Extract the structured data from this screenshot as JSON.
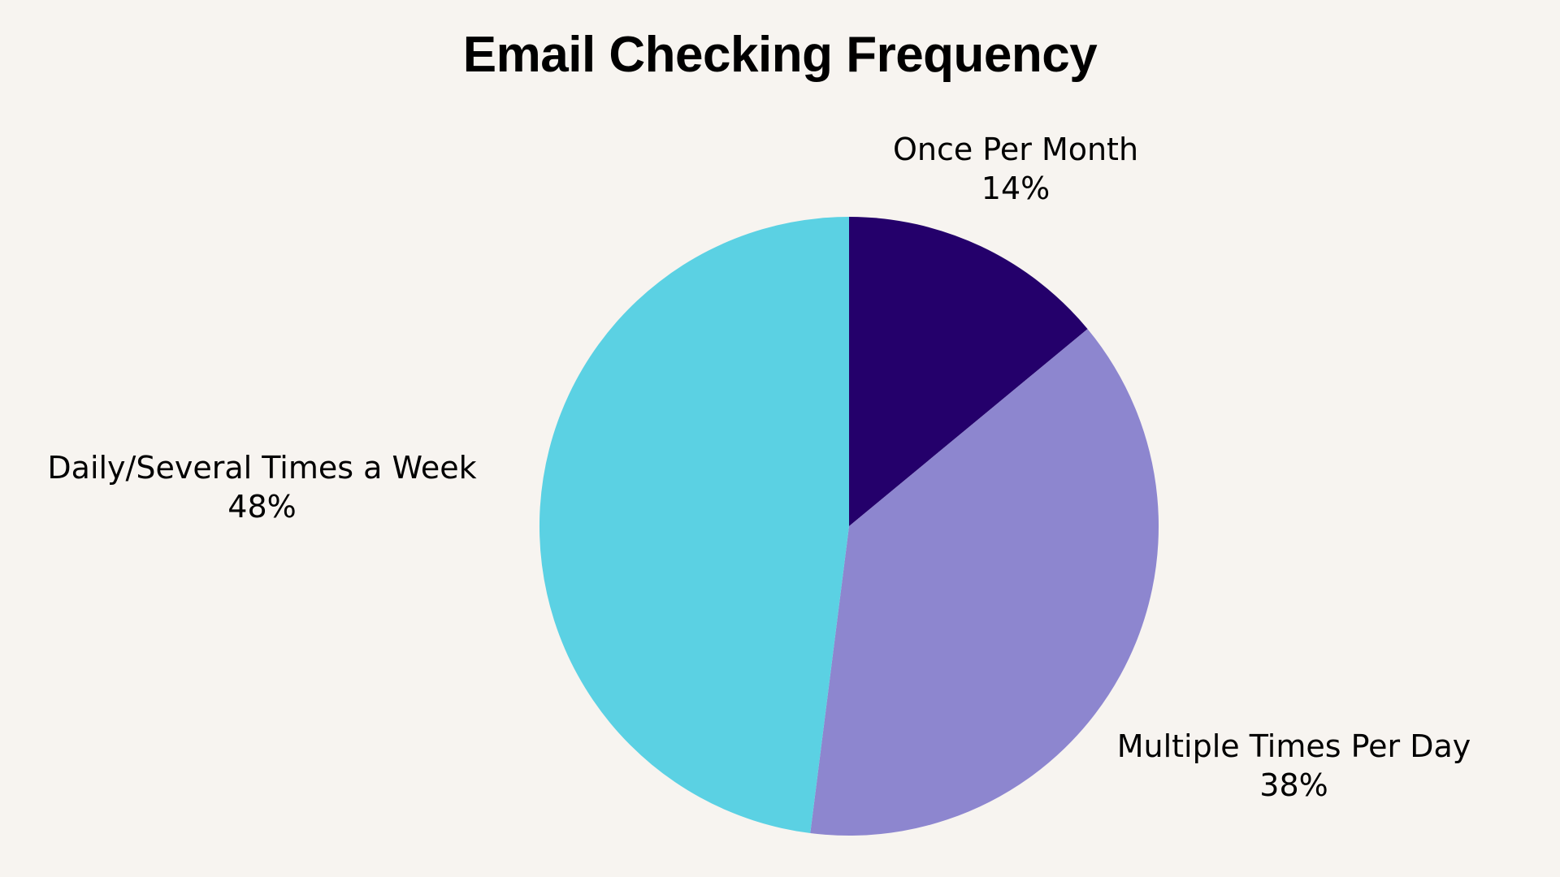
{
  "chart_data": {
    "type": "pie",
    "title": "Email Checking Frequency",
    "categories": [
      "Once Per Month",
      "Multiple Times Per Day",
      "Daily/Several Times a Week"
    ],
    "values": [
      14,
      38,
      48
    ],
    "labels": [
      "14%",
      "38%",
      "48%"
    ],
    "colors": [
      "#24006b",
      "#8d86cf",
      "#5bd1e3"
    ],
    "start_angle": "12 o'clock, clockwise",
    "legend": "none (data labels outside slices)"
  },
  "title": "Email Checking Frequency",
  "slices": [
    {
      "name": "Once Per Month",
      "pct": "14%",
      "color": "#24006b"
    },
    {
      "name": "Multiple Times Per Day",
      "pct": "38%",
      "color": "#8d86cf"
    },
    {
      "name": "Daily/Several Times a Week",
      "pct": "48%",
      "color": "#5bd1e3"
    }
  ],
  "background": "#f7f4f0"
}
